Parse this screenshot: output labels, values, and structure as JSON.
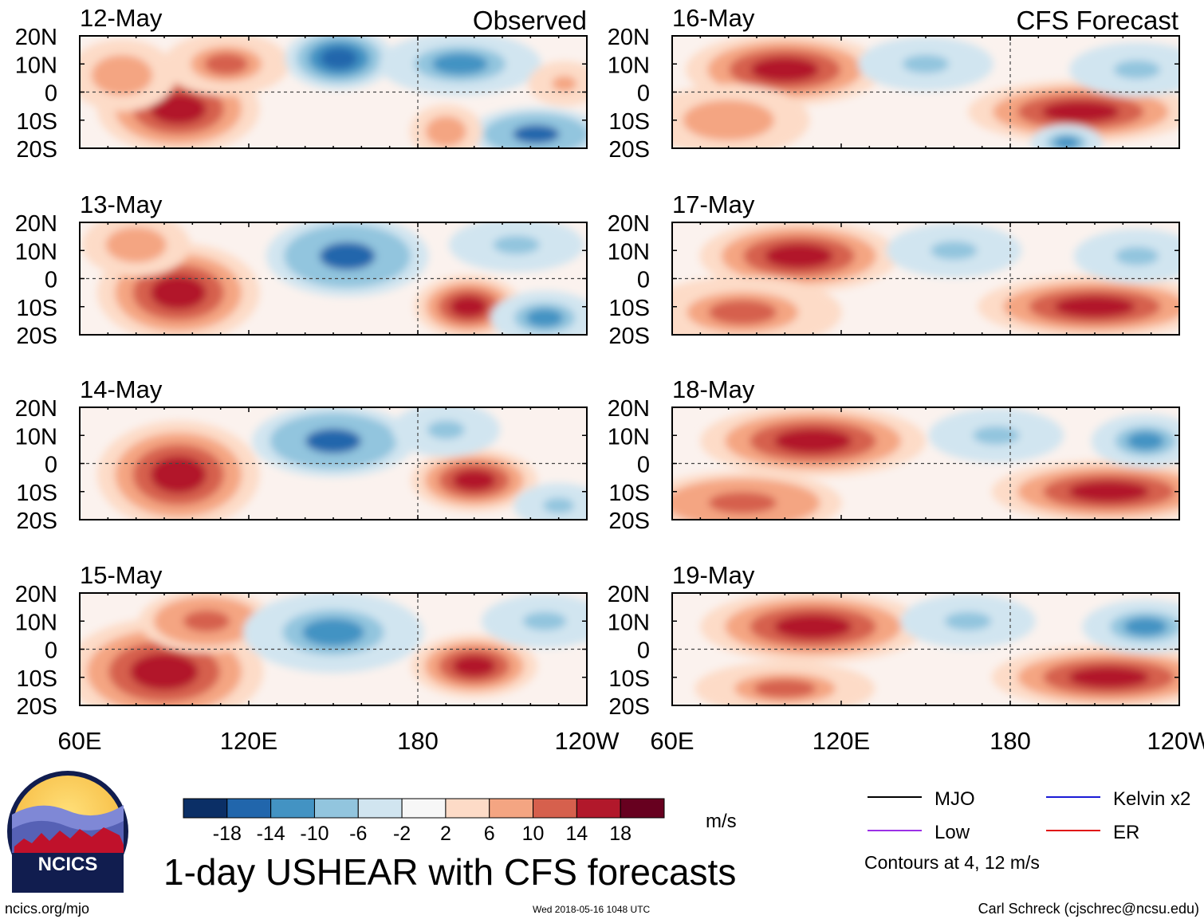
{
  "title": "1-day USHEAR with CFS forecasts",
  "units": "m/s",
  "observed_label": "Observed",
  "forecast_label": "CFS Forecast",
  "logo_text": "NCICS",
  "footer": {
    "site": "ncics.org/mjo",
    "timestamp": "Wed 2018-05-16 1048 UTC",
    "credit": "Carl Schreck (cjschrec@ncsu.edu)"
  },
  "legend": {
    "items": [
      {
        "label": "MJO",
        "color": "#000000"
      },
      {
        "label": "Kelvin x2",
        "color": "#1a1ad6"
      },
      {
        "label": "Low",
        "color": "#9b30e6"
      },
      {
        "label": "ER",
        "color": "#e01010"
      }
    ],
    "contours_note": "Contours at 4, 12 m/s"
  },
  "colorbar": {
    "colors": [
      "#0b2f66",
      "#2166ac",
      "#4393c3",
      "#92c5de",
      "#d1e5f0",
      "#f7f7f7",
      "#fddbc7",
      "#f4a582",
      "#d6604d",
      "#b2182b",
      "#67001f"
    ],
    "tick_labels": [
      "-18",
      "-14",
      "-10",
      "-6",
      "-2",
      "2",
      "6",
      "10",
      "14",
      "18"
    ]
  },
  "chart_data": {
    "type": "heatmap",
    "variable": "USHEAR",
    "x_range_deg_east": [
      60,
      240
    ],
    "y_range_deg": [
      -20,
      20
    ],
    "x_tick_labels": [
      "60E",
      "120E",
      "180",
      "120W"
    ],
    "y_tick_labels": [
      "20N",
      "10N",
      "0",
      "10S",
      "20S"
    ],
    "panels": [
      {
        "date": "12-May",
        "source": "Observed",
        "blobs": [
          {
            "lon": 95,
            "lat": -6,
            "rx": 18,
            "ry": 10,
            "value": 18
          },
          {
            "lon": 75,
            "lat": 6,
            "rx": 12,
            "ry": 8,
            "value": 10
          },
          {
            "lon": 112,
            "lat": 10,
            "rx": 14,
            "ry": 7,
            "value": 12
          },
          {
            "lon": 152,
            "lat": 12,
            "rx": 12,
            "ry": 7,
            "value": -16
          },
          {
            "lon": 195,
            "lat": 10,
            "rx": 18,
            "ry": 7,
            "value": -10
          },
          {
            "lon": 222,
            "lat": -15,
            "rx": 15,
            "ry": 6,
            "value": -14
          },
          {
            "lon": 190,
            "lat": -14,
            "rx": 8,
            "ry": 6,
            "value": 10
          },
          {
            "lon": 232,
            "lat": 3,
            "rx": 8,
            "ry": 5,
            "value": 8
          }
        ]
      },
      {
        "date": "16-May",
        "source": "CFS Forecast",
        "blobs": [
          {
            "lon": 100,
            "lat": 8,
            "rx": 22,
            "ry": 8,
            "value": 18
          },
          {
            "lon": 80,
            "lat": -10,
            "rx": 18,
            "ry": 8,
            "value": 10
          },
          {
            "lon": 205,
            "lat": -7,
            "rx": 25,
            "ry": 7,
            "value": 16
          },
          {
            "lon": 150,
            "lat": 10,
            "rx": 15,
            "ry": 6,
            "value": -8
          },
          {
            "lon": 225,
            "lat": 8,
            "rx": 15,
            "ry": 6,
            "value": -8
          },
          {
            "lon": 200,
            "lat": -18,
            "rx": 8,
            "ry": 4,
            "value": -12
          }
        ]
      },
      {
        "date": "13-May",
        "source": "Observed",
        "blobs": [
          {
            "lon": 95,
            "lat": -5,
            "rx": 18,
            "ry": 11,
            "value": 18
          },
          {
            "lon": 80,
            "lat": 12,
            "rx": 12,
            "ry": 7,
            "value": 10
          },
          {
            "lon": 155,
            "lat": 8,
            "rx": 18,
            "ry": 9,
            "value": -14
          },
          {
            "lon": 198,
            "lat": -10,
            "rx": 12,
            "ry": 7,
            "value": 16
          },
          {
            "lon": 225,
            "lat": -14,
            "rx": 12,
            "ry": 6,
            "value": -12
          },
          {
            "lon": 215,
            "lat": 12,
            "rx": 15,
            "ry": 6,
            "value": -8
          }
        ]
      },
      {
        "date": "17-May",
        "source": "CFS Forecast",
        "blobs": [
          {
            "lon": 105,
            "lat": 8,
            "rx": 22,
            "ry": 8,
            "value": 18
          },
          {
            "lon": 85,
            "lat": -12,
            "rx": 22,
            "ry": 8,
            "value": 12
          },
          {
            "lon": 210,
            "lat": -10,
            "rx": 26,
            "ry": 7,
            "value": 18
          },
          {
            "lon": 160,
            "lat": 10,
            "rx": 15,
            "ry": 6,
            "value": -8
          },
          {
            "lon": 225,
            "lat": 8,
            "rx": 14,
            "ry": 6,
            "value": -8
          }
        ]
      },
      {
        "date": "14-May",
        "source": "Observed",
        "blobs": [
          {
            "lon": 95,
            "lat": -4,
            "rx": 18,
            "ry": 12,
            "value": 18
          },
          {
            "lon": 150,
            "lat": 8,
            "rx": 18,
            "ry": 8,
            "value": -14
          },
          {
            "lon": 200,
            "lat": -6,
            "rx": 14,
            "ry": 7,
            "value": 18
          },
          {
            "lon": 230,
            "lat": -15,
            "rx": 10,
            "ry": 5,
            "value": -8
          },
          {
            "lon": 190,
            "lat": 12,
            "rx": 12,
            "ry": 6,
            "value": -8
          }
        ]
      },
      {
        "date": "18-May",
        "source": "CFS Forecast",
        "blobs": [
          {
            "lon": 110,
            "lat": 8,
            "rx": 25,
            "ry": 8,
            "value": 18
          },
          {
            "lon": 85,
            "lat": -14,
            "rx": 22,
            "ry": 7,
            "value": 14
          },
          {
            "lon": 215,
            "lat": -10,
            "rx": 26,
            "ry": 7,
            "value": 18
          },
          {
            "lon": 175,
            "lat": 10,
            "rx": 15,
            "ry": 6,
            "value": -8
          },
          {
            "lon": 228,
            "lat": 8,
            "rx": 12,
            "ry": 6,
            "value": -10
          }
        ]
      },
      {
        "date": "15-May",
        "source": "Observed",
        "blobs": [
          {
            "lon": 90,
            "lat": -8,
            "rx": 22,
            "ry": 12,
            "value": 18
          },
          {
            "lon": 105,
            "lat": 10,
            "rx": 15,
            "ry": 7,
            "value": 14
          },
          {
            "lon": 150,
            "lat": 6,
            "rx": 20,
            "ry": 9,
            "value": -12
          },
          {
            "lon": 200,
            "lat": -6,
            "rx": 14,
            "ry": 7,
            "value": 16
          },
          {
            "lon": 225,
            "lat": 10,
            "rx": 14,
            "ry": 6,
            "value": -8
          }
        ]
      },
      {
        "date": "19-May",
        "source": "CFS Forecast",
        "blobs": [
          {
            "lon": 110,
            "lat": 8,
            "rx": 25,
            "ry": 8,
            "value": 18
          },
          {
            "lon": 100,
            "lat": -14,
            "rx": 20,
            "ry": 6,
            "value": 12
          },
          {
            "lon": 215,
            "lat": -10,
            "rx": 26,
            "ry": 7,
            "value": 18
          },
          {
            "lon": 165,
            "lat": 10,
            "rx": 15,
            "ry": 6,
            "value": -8
          },
          {
            "lon": 228,
            "lat": 8,
            "rx": 14,
            "ry": 6,
            "value": -10
          }
        ]
      }
    ]
  }
}
